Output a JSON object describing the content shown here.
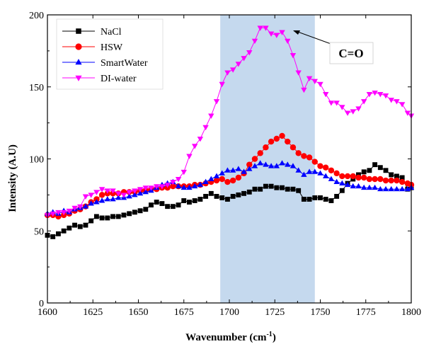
{
  "chart_data": {
    "type": "scatter",
    "xlabel": "Wavenumber (cm",
    "xlabel_sup": "-1",
    "xlabel_close": ")",
    "ylabel": "Intensity (A.U)",
    "xlim": [
      1600,
      1800
    ],
    "ylim": [
      0,
      200
    ],
    "xticks": [
      1600,
      1625,
      1650,
      1675,
      1700,
      1725,
      1750,
      1775,
      1800
    ],
    "yticks": [
      0,
      50,
      100,
      150,
      200
    ],
    "highlight_band": {
      "x0": 1695,
      "x1": 1747,
      "color": "#c5d9ee"
    },
    "annotation": {
      "text": "C=O",
      "points_to": [
        1727,
        188
      ]
    },
    "legend_position": "top-left",
    "series": [
      {
        "name": "NaCl",
        "color": "#000000",
        "marker": "square",
        "x": [
          1600,
          1603,
          1606,
          1609,
          1612,
          1615,
          1618,
          1621,
          1624,
          1627,
          1630,
          1633,
          1636,
          1639,
          1642,
          1645,
          1648,
          1651,
          1654,
          1657,
          1660,
          1663,
          1666,
          1669,
          1672,
          1675,
          1678,
          1681,
          1684,
          1687,
          1690,
          1693,
          1696,
          1699,
          1702,
          1705,
          1708,
          1711,
          1714,
          1717,
          1720,
          1723,
          1726,
          1729,
          1732,
          1735,
          1738,
          1741,
          1744,
          1747,
          1750,
          1753,
          1756,
          1759,
          1762,
          1765,
          1768,
          1771,
          1774,
          1777,
          1780,
          1783,
          1786,
          1789,
          1792,
          1795,
          1798,
          1800
        ],
        "y": [
          47,
          46,
          48,
          50,
          52,
          54,
          53,
          54,
          57,
          60,
          59,
          59,
          60,
          60,
          61,
          62,
          63,
          64,
          65,
          68,
          70,
          69,
          67,
          67,
          68,
          71,
          70,
          71,
          72,
          74,
          76,
          74,
          73,
          72,
          74,
          75,
          76,
          77,
          79,
          79,
          81,
          81,
          80,
          80,
          79,
          79,
          78,
          72,
          72,
          73,
          73,
          72,
          71,
          74,
          78,
          83,
          86,
          89,
          91,
          92,
          96,
          94,
          92,
          89,
          88,
          87,
          79,
          80
        ]
      },
      {
        "name": "HSW",
        "color": "#ff0000",
        "marker": "circle",
        "x": [
          1600,
          1603,
          1606,
          1609,
          1612,
          1615,
          1618,
          1621,
          1624,
          1627,
          1630,
          1633,
          1636,
          1639,
          1642,
          1645,
          1648,
          1651,
          1654,
          1657,
          1660,
          1663,
          1666,
          1669,
          1672,
          1675,
          1678,
          1681,
          1684,
          1687,
          1690,
          1693,
          1696,
          1699,
          1702,
          1705,
          1708,
          1711,
          1714,
          1717,
          1720,
          1723,
          1726,
          1729,
          1732,
          1735,
          1738,
          1741,
          1744,
          1747,
          1750,
          1753,
          1756,
          1759,
          1762,
          1765,
          1768,
          1771,
          1774,
          1777,
          1780,
          1783,
          1786,
          1789,
          1792,
          1795,
          1798,
          1800
        ],
        "y": [
          61,
          61,
          60,
          61,
          62,
          64,
          65,
          67,
          70,
          72,
          75,
          76,
          76,
          76,
          77,
          77,
          77,
          78,
          78,
          79,
          79,
          80,
          80,
          81,
          81,
          81,
          81,
          82,
          82,
          83,
          84,
          85,
          86,
          84,
          85,
          87,
          90,
          96,
          100,
          104,
          108,
          112,
          114,
          116,
          112,
          108,
          104,
          102,
          101,
          98,
          95,
          94,
          92,
          90,
          88,
          88,
          88,
          87,
          87,
          86,
          86,
          86,
          85,
          85,
          85,
          84,
          83,
          82
        ]
      },
      {
        "name": "SmartWater",
        "color": "#0000ff",
        "marker": "triangle-up",
        "x": [
          1600,
          1603,
          1606,
          1609,
          1612,
          1615,
          1618,
          1621,
          1624,
          1627,
          1630,
          1633,
          1636,
          1639,
          1642,
          1645,
          1648,
          1651,
          1654,
          1657,
          1660,
          1663,
          1666,
          1669,
          1672,
          1675,
          1678,
          1681,
          1684,
          1687,
          1690,
          1693,
          1696,
          1699,
          1702,
          1705,
          1708,
          1711,
          1714,
          1717,
          1720,
          1723,
          1726,
          1729,
          1732,
          1735,
          1738,
          1741,
          1744,
          1747,
          1750,
          1753,
          1756,
          1759,
          1762,
          1765,
          1768,
          1771,
          1774,
          1777,
          1780,
          1783,
          1786,
          1789,
          1792,
          1795,
          1798,
          1800
        ],
        "y": [
          62,
          63,
          62,
          64,
          63,
          65,
          66,
          67,
          69,
          70,
          71,
          72,
          72,
          73,
          73,
          74,
          75,
          76,
          77,
          78,
          80,
          82,
          83,
          84,
          81,
          80,
          80,
          81,
          82,
          84,
          86,
          88,
          90,
          92,
          92,
          93,
          91,
          93,
          95,
          97,
          96,
          95,
          95,
          97,
          96,
          95,
          92,
          89,
          91,
          91,
          90,
          88,
          86,
          84,
          83,
          82,
          81,
          81,
          80,
          80,
          80,
          79,
          79,
          79,
          79,
          79,
          79,
          80
        ]
      },
      {
        "name": "DI-water",
        "color": "#ff00ff",
        "marker": "triangle-down",
        "x": [
          1600,
          1603,
          1606,
          1609,
          1612,
          1615,
          1618,
          1621,
          1624,
          1627,
          1630,
          1633,
          1636,
          1639,
          1642,
          1645,
          1648,
          1651,
          1654,
          1657,
          1660,
          1663,
          1666,
          1669,
          1672,
          1675,
          1678,
          1681,
          1684,
          1687,
          1690,
          1693,
          1696,
          1699,
          1702,
          1705,
          1708,
          1711,
          1714,
          1717,
          1720,
          1723,
          1726,
          1729,
          1732,
          1735,
          1738,
          1741,
          1744,
          1747,
          1750,
          1753,
          1756,
          1759,
          1762,
          1765,
          1768,
          1771,
          1774,
          1777,
          1780,
          1783,
          1786,
          1789,
          1792,
          1795,
          1798,
          1800
        ],
        "y": [
          61,
          62,
          63,
          63,
          64,
          66,
          67,
          74,
          75,
          77,
          79,
          78,
          78,
          76,
          75,
          77,
          78,
          79,
          80,
          80,
          81,
          81,
          82,
          84,
          86,
          91,
          102,
          109,
          114,
          122,
          130,
          140,
          152,
          160,
          162,
          166,
          170,
          174,
          182,
          191,
          191,
          187,
          186,
          188,
          182,
          172,
          160,
          148,
          156,
          154,
          152,
          145,
          139,
          139,
          136,
          132,
          133,
          135,
          140,
          145,
          146,
          145,
          144,
          141,
          140,
          138,
          132,
          130
        ]
      }
    ]
  }
}
